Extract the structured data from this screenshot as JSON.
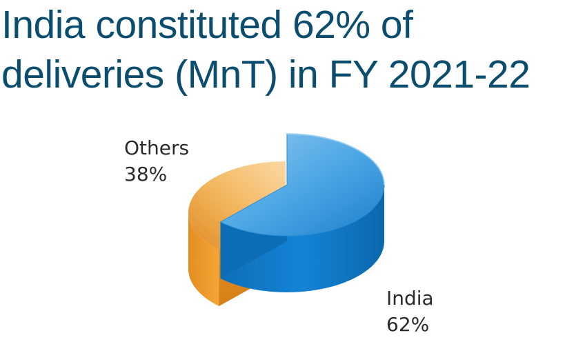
{
  "title_line1": "India constituted 62% of",
  "title_line2": "deliveries (MnT) in FY 2021-22",
  "chart_data": {
    "type": "pie",
    "title": "India constituted 62% of deliveries (MnT) in FY 2021-22",
    "categories": [
      "India",
      "Others"
    ],
    "values": [
      62,
      38
    ],
    "value_labels": [
      "62%",
      "38%"
    ],
    "colors": {
      "India": "#0f7fcf",
      "Others": "#f0a030"
    },
    "style": "3d-exploded"
  }
}
